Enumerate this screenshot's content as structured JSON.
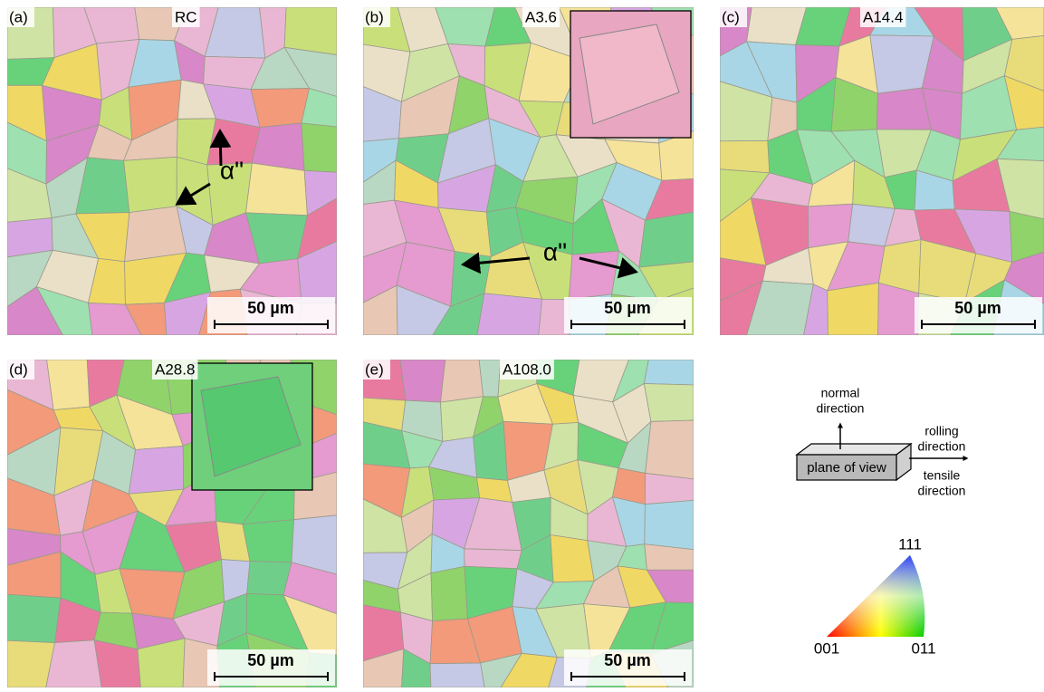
{
  "panels": [
    {
      "label": "(a)",
      "title": "RC",
      "scale_bar": "50 µm",
      "annotation": "α\""
    },
    {
      "label": "(b)",
      "title": "A3.6",
      "scale_bar": "50 µm",
      "annotation": "α\""
    },
    {
      "label": "(c)",
      "title": "A14.4",
      "scale_bar": "50 µm"
    },
    {
      "label": "(d)",
      "title": "A28.8",
      "scale_bar": "50 µm"
    },
    {
      "label": "(e)",
      "title": "A108.0",
      "scale_bar": "50 µm"
    }
  ],
  "schematic": {
    "normal": [
      "normal",
      "direction"
    ],
    "rolling": [
      "rolling",
      "direction"
    ],
    "tensile": [
      "tensile",
      "direction"
    ],
    "box_label": "plane of view"
  },
  "ipf_triangle": {
    "top": "111",
    "left": "001",
    "right": "011"
  }
}
